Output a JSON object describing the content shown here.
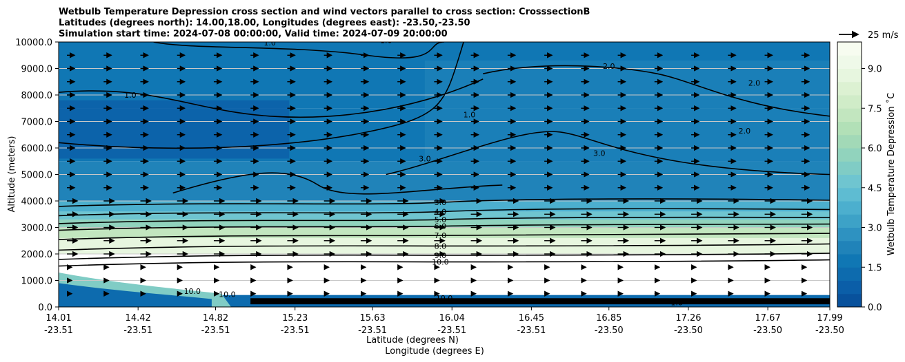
{
  "title": {
    "line1": "Wetbulb Temperature Depression cross section and wind vectors parallel to cross section: CrosssectionB",
    "line2": "Latitudes (degrees north): 14.00,18.00, Longitudes (degrees east): -23.50,-23.50",
    "line3": "Simulation start time: 2024-07-08 00:00:00, Valid time: 2024-07-09 20:00:00"
  },
  "quiver_key": {
    "label": "25 m/s"
  },
  "colorbar": {
    "label": "Wetbulb Temperature Depression ˚C",
    "ticks": [
      "0.0",
      "1.5",
      "3.0",
      "4.5",
      "6.0",
      "7.5",
      "9.0"
    ],
    "levels": [
      0,
      0.5,
      1.0,
      1.5,
      2.0,
      2.5,
      3.0,
      3.5,
      4.0,
      4.5,
      5.0,
      5.5,
      6.0,
      6.5,
      7.0,
      7.5,
      8.0,
      8.5,
      9.0,
      9.5,
      10.0
    ],
    "colors": [
      "#08519c",
      "#0b5ea8",
      "#0d6bae",
      "#1077b4",
      "#2083b9",
      "#2e92c1",
      "#3da2c7",
      "#4cafce",
      "#5ebcd2",
      "#6fc5d0",
      "#80ccc5",
      "#91d3bd",
      "#a2d9b7",
      "#b2e0b7",
      "#c2e6bf",
      "#d0ecc8",
      "#dcf1d2",
      "#e7f6df",
      "#eff9e9",
      "#f7fcf0"
    ]
  },
  "x_axis": {
    "label_lat": "Latitude (degrees N)",
    "label_lon": "Longitude (degrees E)",
    "ticks": [
      {
        "lat": "14.01",
        "lon": "-23.51"
      },
      {
        "lat": "14.42",
        "lon": "-23.51"
      },
      {
        "lat": "14.82",
        "lon": "-23.51"
      },
      {
        "lat": "15.23",
        "lon": "-23.51"
      },
      {
        "lat": "15.63",
        "lon": "-23.51"
      },
      {
        "lat": "16.04",
        "lon": "-23.51"
      },
      {
        "lat": "16.45",
        "lon": "-23.51"
      },
      {
        "lat": "16.85",
        "lon": "-23.50"
      },
      {
        "lat": "17.26",
        "lon": "-23.50"
      },
      {
        "lat": "17.67",
        "lon": "-23.50"
      },
      {
        "lat": "17.99",
        "lon": "-23.50"
      }
    ]
  },
  "y_axis": {
    "label": "Altitude (meters)",
    "ticks": [
      "0.0",
      "1000.0",
      "2000.0",
      "3000.0",
      "4000.0",
      "5000.0",
      "6000.0",
      "7000.0",
      "8000.0",
      "9000.0",
      "10000.0"
    ]
  },
  "chart_data": {
    "type": "contour",
    "x_field": "latitude",
    "xlim": [
      14.01,
      17.99
    ],
    "ylim": [
      0,
      10000
    ],
    "grid": "horizontal",
    "bands": [
      {
        "bottom": 0,
        "top": 1300,
        "value": 10.0
      },
      {
        "bottom": 1300,
        "top": 2000,
        "value": 10.0
      },
      {
        "bottom": 2000,
        "top": 2600,
        "value": 8.5
      },
      {
        "bottom": 2600,
        "top": 3000,
        "value": 7.0
      },
      {
        "bottom": 3000,
        "top": 3300,
        "value": 5.5
      },
      {
        "bottom": 3300,
        "top": 3600,
        "value": 4.5
      },
      {
        "bottom": 3600,
        "top": 4000,
        "value": 3.5
      },
      {
        "bottom": 4000,
        "top": 5500,
        "value": 2.0
      },
      {
        "bottom": 5500,
        "top": 7500,
        "value": 1.5
      },
      {
        "bottom": 7500,
        "top": 10000,
        "value": 1.8
      }
    ],
    "contour_levels": [
      {
        "label": "3.0",
        "altitude": 3950
      },
      {
        "label": "4.0",
        "altitude": 3600
      },
      {
        "label": "5.0",
        "altitude": 3300
      },
      {
        "label": "6.0",
        "altitude": 3050
      },
      {
        "label": "7.0",
        "altitude": 2700
      },
      {
        "label": "8.0",
        "altitude": 2300
      },
      {
        "label": "9.0",
        "altitude": 1950
      },
      {
        "label": "10.0",
        "altitude": 1700
      }
    ],
    "upper_labels": [
      "1.0",
      "1.0",
      "1.0",
      "1.0",
      "2.0",
      "2.0",
      "2.0",
      "3.0",
      "3.0"
    ],
    "surface_labels": [
      "10.0",
      "10.0",
      "10.0",
      "10.0",
      "1.0"
    ],
    "wind": {
      "direction": "toward increasing latitude",
      "reference_speed": 25
    }
  }
}
